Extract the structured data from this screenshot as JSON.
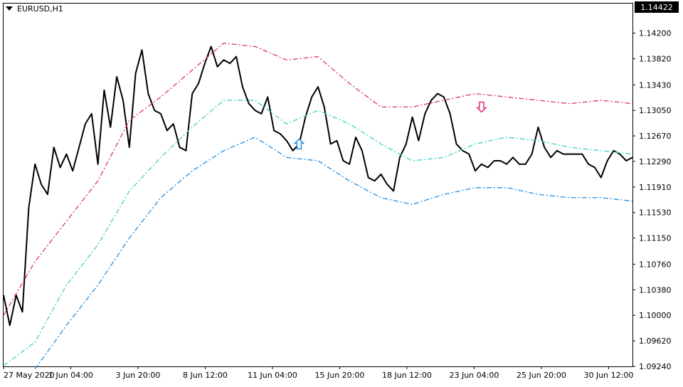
{
  "header": {
    "symbol_label": "EURUSD,H1"
  },
  "current_price": "1.14422",
  "colors": {
    "price": "#000000",
    "upper_band": "#e0307f",
    "middle_band": "#3fd2c8",
    "lower_band": "#1e8fe6",
    "price_tag_bg": "#000000",
    "price_tag_text": "#ffffff"
  },
  "chart_data": {
    "type": "line",
    "title": "",
    "xlabel": "",
    "ylabel": "",
    "ylim": [
      1.0924,
      1.1464
    ],
    "y_ticks": [
      "1.14200",
      "1.13820",
      "1.13430",
      "1.13050",
      "1.12670",
      "1.12290",
      "1.11910",
      "1.11530",
      "1.11150",
      "1.10760",
      "1.10380",
      "1.10000",
      "1.09620",
      "1.09240"
    ],
    "x_ticks": [
      "27 May 2020",
      "1 Jun 04:00",
      "3 Jun 20:00",
      "8 Jun 12:00",
      "11 Jun 04:00",
      "15 Jun 20:00",
      "18 Jun 12:00",
      "23 Jun 04:00",
      "25 Jun 20:00",
      "30 Jun 12:00"
    ],
    "x_range": [
      0,
      100
    ],
    "series": [
      {
        "role": "price",
        "x": [
          0,
          1,
          2,
          3,
          4,
          5,
          6,
          7,
          8,
          9,
          10,
          11,
          12,
          13,
          14,
          15,
          16,
          17,
          18,
          19,
          20,
          21,
          22,
          23,
          24,
          25,
          26,
          27,
          28,
          29,
          30,
          31,
          32,
          33,
          34,
          35,
          36,
          37,
          38,
          39,
          40,
          41,
          42,
          43,
          44,
          45,
          46,
          47,
          48,
          49,
          50,
          51,
          52,
          53,
          54,
          55,
          56,
          57,
          58,
          59,
          60,
          61,
          62,
          63,
          64,
          65,
          66,
          67,
          68,
          69,
          70,
          71,
          72,
          73,
          74,
          75,
          76,
          77,
          78,
          79,
          80,
          81,
          82,
          83,
          84,
          85,
          86,
          87,
          88,
          89,
          90,
          91,
          92,
          93,
          94,
          95,
          96,
          97,
          98,
          99,
          100
        ],
        "values": [
          1.103,
          1.0985,
          1.103,
          1.1005,
          1.116,
          1.1225,
          1.1195,
          1.118,
          1.125,
          1.122,
          1.124,
          1.1215,
          1.125,
          1.1285,
          1.13,
          1.1225,
          1.1335,
          1.128,
          1.1355,
          1.132,
          1.125,
          1.136,
          1.1395,
          1.133,
          1.1305,
          1.13,
          1.1275,
          1.1285,
          1.125,
          1.1245,
          1.133,
          1.1345,
          1.1375,
          1.14,
          1.137,
          1.138,
          1.1375,
          1.1385,
          1.134,
          1.1315,
          1.1305,
          1.13,
          1.1325,
          1.1275,
          1.127,
          1.126,
          1.1245,
          1.1255,
          1.1295,
          1.1325,
          1.134,
          1.131,
          1.1255,
          1.126,
          1.123,
          1.1225,
          1.1265,
          1.1245,
          1.1205,
          1.12,
          1.121,
          1.1195,
          1.1185,
          1.1235,
          1.1255,
          1.1295,
          1.126,
          1.13,
          1.132,
          1.133,
          1.1325,
          1.13,
          1.1255,
          1.1245,
          1.124,
          1.1215,
          1.1225,
          1.122,
          1.123,
          1.123,
          1.1225,
          1.1235,
          1.1225,
          1.1225,
          1.124,
          1.128,
          1.125,
          1.1235,
          1.1245,
          1.124,
          1.124,
          1.124,
          1.124,
          1.1225,
          1.122,
          1.1205,
          1.123,
          1.1245,
          1.124,
          1.123,
          1.1235
        ]
      },
      {
        "role": "upper_band",
        "x": [
          0,
          5,
          10,
          15,
          20,
          25,
          30,
          35,
          40,
          45,
          50,
          55,
          60,
          65,
          70,
          75,
          80,
          85,
          90,
          95,
          100
        ],
        "values": [
          1.1,
          1.108,
          1.114,
          1.12,
          1.129,
          1.1325,
          1.1365,
          1.1405,
          1.14,
          1.138,
          1.1385,
          1.1345,
          1.131,
          1.131,
          1.132,
          1.133,
          1.1325,
          1.132,
          1.1315,
          1.132,
          1.1315
        ]
      },
      {
        "role": "middle_band",
        "x": [
          0,
          5,
          10,
          15,
          20,
          25,
          30,
          35,
          40,
          45,
          50,
          55,
          60,
          65,
          70,
          75,
          80,
          85,
          90,
          95,
          100
        ],
        "values": [
          1.0925,
          1.096,
          1.1045,
          1.1105,
          1.1185,
          1.1235,
          1.128,
          1.132,
          1.132,
          1.1285,
          1.1305,
          1.1285,
          1.1255,
          1.123,
          1.1235,
          1.1255,
          1.1265,
          1.126,
          1.125,
          1.1245,
          1.124
        ]
      },
      {
        "role": "lower_band",
        "x": [
          5,
          10,
          15,
          20,
          25,
          30,
          35,
          40,
          45,
          50,
          55,
          60,
          65,
          70,
          75,
          80,
          85,
          90,
          95,
          100
        ],
        "values": [
          1.092,
          1.0985,
          1.1045,
          1.1115,
          1.1175,
          1.1215,
          1.1245,
          1.1265,
          1.1235,
          1.123,
          1.12,
          1.1175,
          1.1165,
          1.118,
          1.119,
          1.119,
          1.118,
          1.1175,
          1.1175,
          1.117
        ]
      }
    ],
    "markers": [
      {
        "type": "arrow-down",
        "color": "#e0307f",
        "x": 76,
        "y": 1.131
      },
      {
        "type": "arrow-up",
        "color": "#1e8fe6",
        "x": 47,
        "y": 1.1255
      }
    ],
    "grid": false,
    "legend": "none"
  }
}
